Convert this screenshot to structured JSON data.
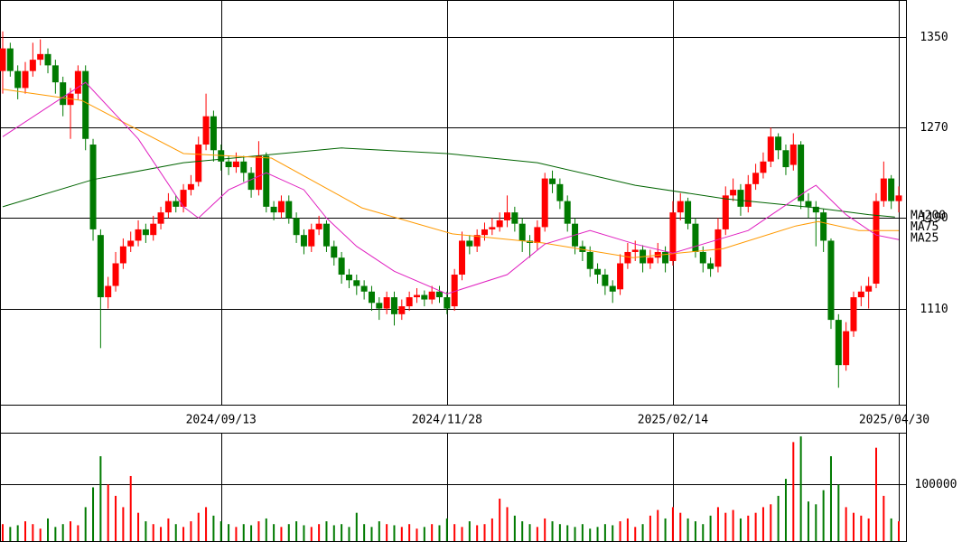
{
  "chart_data": [
    {
      "type": "candlestick",
      "categories": [
        null,
        null,
        null,
        null,
        null,
        null,
        null,
        null,
        null,
        null,
        null,
        null,
        null,
        null,
        null,
        null,
        null,
        null,
        null,
        null,
        null,
        null,
        null,
        null,
        null,
        null,
        null,
        null,
        null,
        "2024/09/13",
        null,
        null,
        null,
        null,
        null,
        null,
        null,
        null,
        null,
        null,
        null,
        null,
        null,
        null,
        null,
        null,
        null,
        null,
        null,
        null,
        null,
        null,
        null,
        null,
        null,
        null,
        null,
        null,
        null,
        "2024/11/28",
        null,
        null,
        null,
        null,
        null,
        null,
        null,
        null,
        null,
        null,
        null,
        null,
        null,
        null,
        null,
        null,
        null,
        null,
        null,
        null,
        null,
        null,
        null,
        null,
        null,
        null,
        null,
        null,
        null,
        "2025/02/14",
        null,
        null,
        null,
        null,
        null,
        null,
        null,
        null,
        null,
        null,
        null,
        null,
        null,
        null,
        null,
        null,
        null,
        null,
        null,
        null,
        null,
        null,
        null,
        null,
        null,
        null,
        null,
        null,
        null,
        "2025/04/30"
      ],
      "open": [
        1320,
        1340,
        1320,
        1305,
        1320,
        1330,
        1335,
        1325,
        1310,
        1290,
        1300,
        1320,
        1255,
        1175,
        1120,
        1130,
        1150,
        1165,
        1170,
        1180,
        1175,
        1185,
        1195,
        1205,
        1200,
        1215,
        1222,
        1255,
        1280,
        1250,
        1240,
        1235,
        1240,
        1230,
        1215,
        1245,
        1200,
        1195,
        1205,
        1190,
        1175,
        1165,
        1180,
        1185,
        1165,
        1155,
        1140,
        1135,
        1130,
        1125,
        1115,
        1110,
        1120,
        1105,
        1112,
        1120,
        1122,
        1118,
        1125,
        1120,
        1112,
        1140,
        1170,
        1165,
        1175,
        1180,
        1182,
        1188,
        1195,
        1185,
        1170,
        1168,
        1182,
        1225,
        1220,
        1205,
        1185,
        1165,
        1160,
        1145,
        1140,
        1130,
        1127,
        1150,
        1160,
        1162,
        1150,
        1155,
        1160,
        1152,
        1195,
        1205,
        1185,
        1160,
        1150,
        1147,
        1180,
        1210,
        1215,
        1200,
        1220,
        1230,
        1240,
        1262,
        1250,
        1237,
        1255,
        1205,
        1200,
        1195,
        1170,
        1100,
        1060,
        1090,
        1120,
        1125,
        1132,
        1205,
        1225,
        1205
      ],
      "high": [
        1355,
        1345,
        1325,
        1328,
        1345,
        1348,
        1340,
        1330,
        1315,
        1305,
        1325,
        1325,
        1260,
        1180,
        1138,
        1160,
        1172,
        1178,
        1188,
        1185,
        1192,
        1200,
        1212,
        1210,
        1220,
        1228,
        1262,
        1300,
        1285,
        1255,
        1245,
        1248,
        1245,
        1235,
        1258,
        1248,
        1205,
        1210,
        1210,
        1195,
        1180,
        1185,
        1192,
        1188,
        1170,
        1160,
        1145,
        1140,
        1135,
        1130,
        1120,
        1125,
        1125,
        1118,
        1125,
        1128,
        1126,
        1130,
        1130,
        1125,
        1145,
        1178,
        1175,
        1180,
        1186,
        1190,
        1195,
        1210,
        1200,
        1190,
        1175,
        1188,
        1230,
        1232,
        1225,
        1210,
        1190,
        1170,
        1165,
        1150,
        1145,
        1135,
        1158,
        1168,
        1170,
        1166,
        1162,
        1168,
        1165,
        1205,
        1212,
        1208,
        1190,
        1165,
        1155,
        1190,
        1218,
        1225,
        1220,
        1228,
        1238,
        1248,
        1270,
        1265,
        1255,
        1265,
        1258,
        1212,
        1205,
        1198,
        1172,
        1105,
        1098,
        1125,
        1130,
        1138,
        1212,
        1240,
        1228,
        1218
      ],
      "low": [
        1300,
        1315,
        1295,
        1300,
        1315,
        1325,
        1318,
        1300,
        1280,
        1260,
        1295,
        1250,
        1170,
        1075,
        1110,
        1125,
        1145,
        1160,
        1165,
        1168,
        1170,
        1180,
        1190,
        1195,
        1195,
        1210,
        1218,
        1250,
        1240,
        1232,
        1228,
        1230,
        1222,
        1208,
        1210,
        1195,
        1188,
        1190,
        1185,
        1168,
        1158,
        1160,
        1175,
        1160,
        1148,
        1132,
        1128,
        1122,
        1118,
        1108,
        1100,
        1105,
        1095,
        1100,
        1108,
        1115,
        1112,
        1114,
        1115,
        1105,
        1108,
        1135,
        1158,
        1160,
        1170,
        1175,
        1178,
        1182,
        1178,
        1160,
        1155,
        1162,
        1178,
        1212,
        1198,
        1178,
        1158,
        1152,
        1138,
        1132,
        1122,
        1115,
        1122,
        1145,
        1152,
        1142,
        1145,
        1150,
        1142,
        1148,
        1188,
        1180,
        1155,
        1142,
        1138,
        1142,
        1175,
        1205,
        1192,
        1195,
        1215,
        1225,
        1235,
        1242,
        1228,
        1232,
        1198,
        1190,
        1165,
        1160,
        1092,
        1040,
        1055,
        1085,
        1112,
        1110,
        1128,
        1200,
        1198,
        1195
      ],
      "close": [
        1340,
        1320,
        1305,
        1320,
        1330,
        1335,
        1325,
        1310,
        1290,
        1300,
        1320,
        1260,
        1180,
        1120,
        1130,
        1150,
        1165,
        1170,
        1180,
        1175,
        1185,
        1195,
        1205,
        1200,
        1215,
        1220,
        1255,
        1280,
        1250,
        1240,
        1235,
        1240,
        1230,
        1215,
        1245,
        1200,
        1195,
        1205,
        1190,
        1175,
        1165,
        1180,
        1185,
        1165,
        1155,
        1140,
        1135,
        1130,
        1125,
        1115,
        1110,
        1120,
        1105,
        1112,
        1120,
        1122,
        1118,
        1125,
        1120,
        1110,
        1140,
        1170,
        1165,
        1175,
        1180,
        1182,
        1188,
        1195,
        1185,
        1170,
        1168,
        1182,
        1225,
        1220,
        1205,
        1185,
        1165,
        1160,
        1145,
        1140,
        1130,
        1125,
        1150,
        1160,
        1162,
        1150,
        1155,
        1160,
        1150,
        1195,
        1205,
        1185,
        1160,
        1150,
        1145,
        1180,
        1210,
        1215,
        1200,
        1220,
        1230,
        1240,
        1262,
        1250,
        1235,
        1255,
        1205,
        1200,
        1195,
        1170,
        1100,
        1060,
        1090,
        1120,
        1125,
        1130,
        1205,
        1225,
        1205,
        1210
      ],
      "up_color": "#ff0000",
      "down_color": "#007a00",
      "series": [
        {
          "name": "MA200",
          "color": "#006400",
          "x": [
            0,
            12,
            24,
            45,
            59,
            71,
            84,
            96,
            108,
            115,
            118.5
          ],
          "values": [
            1200,
            1224,
            1239,
            1252,
            1247,
            1239,
            1219,
            1207,
            1199,
            1193,
            1191
          ]
        },
        {
          "name": "MA75",
          "color": "#ff9900",
          "x": [
            0,
            10.5,
            24,
            35.7,
            47.7,
            59.7,
            71.7,
            83.7,
            95.7,
            105.3,
            108.3,
            113.7,
            119
          ],
          "values": [
            1304,
            1294,
            1247,
            1243,
            1199,
            1176,
            1168,
            1155,
            1163,
            1183,
            1187,
            1179,
            1179
          ]
        },
        {
          "name": "MA25",
          "color": "#e020c0",
          "x": [
            0,
            11,
            18,
            24,
            26,
            30,
            35,
            40,
            43,
            47,
            52,
            59,
            67,
            72,
            78,
            84,
            89,
            93,
            99,
            107,
            108,
            112,
            116,
            119
          ],
          "values": [
            1262,
            1310,
            1260,
            1200,
            1190,
            1215,
            1230,
            1215,
            1190,
            1165,
            1143,
            1123,
            1140,
            1167,
            1179,
            1167,
            1159,
            1167,
            1179,
            1215,
            1219,
            1193,
            1175,
            1171
          ]
        }
      ],
      "ylim": [
        1025,
        1382
      ],
      "yticks": [
        1110,
        1190,
        1270,
        1350
      ],
      "grid": true
    },
    {
      "type": "bar",
      "values": [
        30000,
        25000,
        28000,
        35000,
        30000,
        22000,
        40000,
        25000,
        30000,
        35000,
        28000,
        60000,
        95000,
        150000,
        100000,
        80000,
        60000,
        115000,
        50000,
        35000,
        30000,
        25000,
        40000,
        30000,
        25000,
        35000,
        50000,
        60000,
        45000,
        35000,
        30000,
        25000,
        30000,
        28000,
        35000,
        40000,
        30000,
        25000,
        30000,
        35000,
        28000,
        25000,
        30000,
        35000,
        28000,
        30000,
        25000,
        50000,
        30000,
        25000,
        35000,
        30000,
        28000,
        25000,
        30000,
        22000,
        25000,
        30000,
        28000,
        40000,
        30000,
        25000,
        35000,
        28000,
        30000,
        40000,
        75000,
        60000,
        45000,
        35000,
        30000,
        25000,
        40000,
        35000,
        30000,
        28000,
        25000,
        30000,
        22000,
        25000,
        30000,
        28000,
        35000,
        40000,
        25000,
        30000,
        45000,
        55000,
        40000,
        60000,
        50000,
        40000,
        35000,
        30000,
        45000,
        60000,
        50000,
        55000,
        40000,
        45000,
        50000,
        60000,
        65000,
        80000,
        110000,
        175000,
        185000,
        70000,
        65000,
        90000,
        150000,
        100000,
        60000,
        50000,
        45000,
        40000,
        165000,
        80000,
        40000,
        35000
      ],
      "ylim": [
        0,
        190000
      ],
      "yticks": [
        100000
      ],
      "grid": true
    }
  ]
}
